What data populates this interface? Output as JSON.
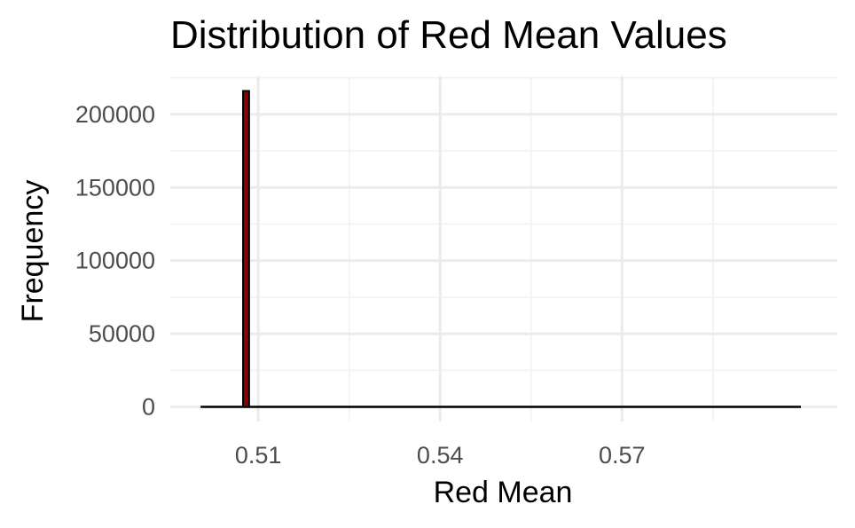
{
  "chart_data": {
    "type": "bar",
    "title": "Distribution of Red Mean Values",
    "xlabel": "Red Mean",
    "ylabel": "Frequency",
    "x_ticks": [
      0.51,
      0.54,
      0.57
    ],
    "x_tick_labels": [
      "0.51",
      "0.54",
      "0.57"
    ],
    "y_ticks": [
      0,
      50000,
      100000,
      150000,
      200000
    ],
    "y_tick_labels": [
      "0",
      "50000",
      "100000",
      "150000",
      "200000"
    ],
    "xlim": [
      0.4955,
      0.6055
    ],
    "ylim": [
      -10000,
      226000
    ],
    "grid": true,
    "bin_range": [
      0.5005,
      0.5995
    ],
    "bins": [
      {
        "x": 0.508,
        "value": 216000
      }
    ],
    "colors": {
      "bar_fill": "#8b0000",
      "bar_outline": "#000000",
      "grid_major": "#ebebeb",
      "grid_minor": "#f2f2f2"
    }
  }
}
